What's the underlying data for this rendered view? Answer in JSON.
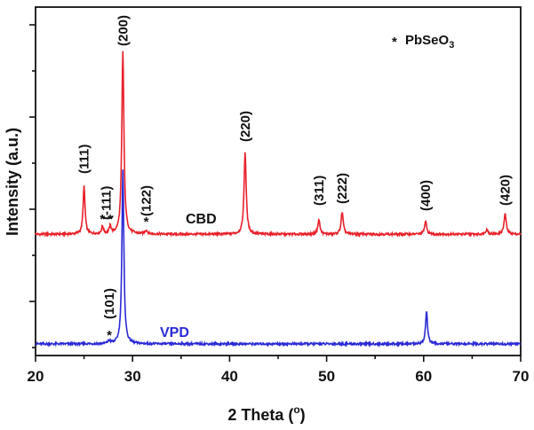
{
  "chart_data": {
    "type": "line",
    "xlabel_main": "2 Theta (",
    "xlabel_sup": "o",
    "xlabel_end": ")",
    "ylabel": "Intensity (a.u.)",
    "xlim": [
      20,
      70
    ],
    "xticks": [
      "20",
      "30",
      "40",
      "50",
      "60",
      "70"
    ],
    "yticks_labeled": false,
    "grid": false,
    "legend": {
      "marker": "*",
      "text_main": "PbSeO",
      "text_sub": "3",
      "placement": "top-right"
    },
    "series": [
      {
        "name": "CBD",
        "color": "#e8212a",
        "baseline": 0.62,
        "peaks": [
          {
            "x": 25.0,
            "height": 0.26,
            "width": 0.12
          },
          {
            "x": 26.9,
            "height": 0.04,
            "width": 0.12
          },
          {
            "x": 27.7,
            "height": 0.04,
            "width": 0.12
          },
          {
            "x": 29.0,
            "height": 1.0,
            "width": 0.13
          },
          {
            "x": 31.4,
            "height": 0.02,
            "width": 0.15
          },
          {
            "x": 41.6,
            "height": 0.45,
            "width": 0.13
          },
          {
            "x": 49.2,
            "height": 0.08,
            "width": 0.13
          },
          {
            "x": 51.6,
            "height": 0.12,
            "width": 0.13
          },
          {
            "x": 60.2,
            "height": 0.07,
            "width": 0.13
          },
          {
            "x": 66.5,
            "height": 0.025,
            "width": 0.15
          },
          {
            "x": 68.4,
            "height": 0.11,
            "width": 0.14
          }
        ]
      },
      {
        "name": "VPD",
        "color": "#2a2ad6",
        "baseline": 0.02,
        "peaks": [
          {
            "x": 27.6,
            "height": 0.015,
            "width": 0.15
          },
          {
            "x": 29.0,
            "height": 0.95,
            "width": 0.12
          },
          {
            "x": 60.3,
            "height": 0.18,
            "width": 0.12
          }
        ]
      }
    ],
    "annotations": [
      {
        "text": "(200)",
        "x": 29.0
      },
      {
        "text": "(111)",
        "x": 25.0
      },
      {
        "text": "(-111)",
        "x": 27.3
      },
      {
        "text": "(122)",
        "x": 31.4
      },
      {
        "text": "(220)",
        "x": 41.6
      },
      {
        "text": "(311)",
        "x": 49.2
      },
      {
        "text": "(222)",
        "x": 51.6
      },
      {
        "text": "(400)",
        "x": 60.2
      },
      {
        "text": "(420)",
        "x": 68.4
      },
      {
        "text": "(101)",
        "x": 27.6
      }
    ],
    "markers": [
      {
        "text": "*",
        "x": 26.9
      },
      {
        "text": "*",
        "x": 27.7
      },
      {
        "text": "*",
        "x": 31.4
      },
      {
        "text": "*",
        "x": 27.6
      }
    ]
  }
}
